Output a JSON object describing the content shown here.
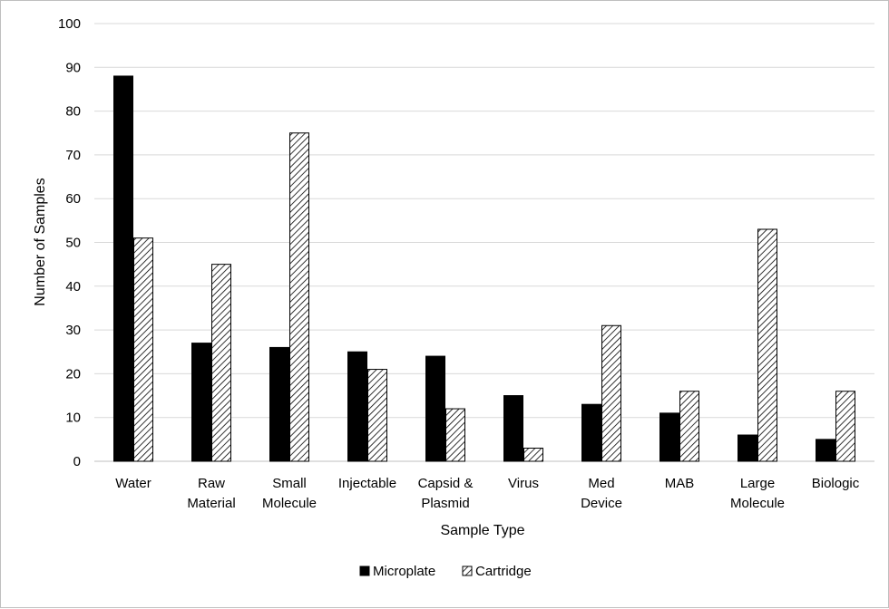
{
  "chart_data": {
    "type": "bar",
    "title": "",
    "xlabel": "Sample Type",
    "ylabel": "Number of Samples",
    "ylim": [
      0,
      100
    ],
    "yticks": [
      0,
      10,
      20,
      30,
      40,
      50,
      60,
      70,
      80,
      90,
      100
    ],
    "categories": [
      [
        "Water"
      ],
      [
        "Raw",
        "Material"
      ],
      [
        "Small",
        "Molecule"
      ],
      [
        "Injectable"
      ],
      [
        "Capsid &",
        "Plasmid"
      ],
      [
        "Virus"
      ],
      [
        "Med",
        "Device"
      ],
      [
        "MAB"
      ],
      [
        "Large",
        "Molecule"
      ],
      [
        "Biologic"
      ]
    ],
    "series": [
      {
        "name": "Microplate",
        "fill": "solid",
        "color": "#000000",
        "values": [
          88,
          27,
          26,
          25,
          24,
          15,
          13,
          11,
          6,
          5
        ]
      },
      {
        "name": "Cartridge",
        "fill": "hatched",
        "color": "#000000",
        "values": [
          51,
          45,
          75,
          21,
          12,
          3,
          31,
          16,
          53,
          16
        ]
      }
    ],
    "grid": true,
    "legend_position": "bottom-center"
  }
}
